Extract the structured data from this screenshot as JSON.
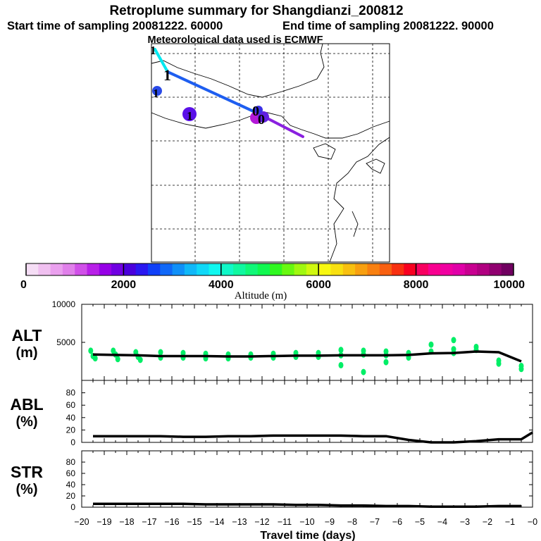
{
  "header": {
    "title": "Retroplume summary for Shangdianzi_200812",
    "start_time": "Start time of sampling 20081222. 60000",
    "end_time": "End time of sampling 20081222. 90000",
    "met_data": "Meteorological data used is ECMWF"
  },
  "colorbar": {
    "label": "Altitude (m)",
    "ticks": [
      "0",
      "2000",
      "4000",
      "6000",
      "8000",
      "10000"
    ],
    "colors": [
      "#f5ddf5",
      "#f0c0f0",
      "#eaa0ee",
      "#e080ea",
      "#d050e8",
      "#b820e8",
      "#9600e6",
      "#7000e2",
      "#4a00dc",
      "#2a18f0",
      "#1040f8",
      "#1068f8",
      "#1090f8",
      "#10b8f8",
      "#10d8f8",
      "#10f8f0",
      "#10f8c8",
      "#10f8a0",
      "#10f878",
      "#10f850",
      "#30f820",
      "#68f810",
      "#a0f810",
      "#d0f810",
      "#f8f810",
      "#f8e010",
      "#f8c010",
      "#f8a010",
      "#f88010",
      "#f86010",
      "#f83010",
      "#f80020",
      "#f80060",
      "#f80090",
      "#f000a0",
      "#e000a8",
      "#c80090",
      "#b00080",
      "#900070",
      "#700060"
    ]
  },
  "map_markers": {
    "label_char": "1",
    "cluster_char": "0"
  },
  "chart_data": [
    {
      "type": "line",
      "panel_id": "ALT",
      "ylabel": "ALT",
      "yunit": "(m)",
      "ylim": [
        0,
        10000
      ],
      "yticks": [
        5000,
        10000
      ],
      "ytick_labels": [
        "5000",
        "10000"
      ],
      "xlim": [
        -20,
        0
      ],
      "x": [
        -19.5,
        -18.5,
        -17.5,
        -16.5,
        -15.5,
        -14.5,
        -13.5,
        -12.5,
        -11.5,
        -10.5,
        -9.5,
        -8.5,
        -7.5,
        -6.5,
        -5.5,
        -4.5,
        -3.5,
        -2.5,
        -1.5,
        -0.5
      ],
      "line_values": [
        3400,
        3350,
        3300,
        3200,
        3200,
        3200,
        3150,
        3150,
        3200,
        3250,
        3250,
        3300,
        3300,
        3300,
        3350,
        3550,
        3600,
        3800,
        3700,
        2500
      ],
      "scatter": [
        {
          "x": -19.6,
          "y": 3900
        },
        {
          "x": -19.5,
          "y": 3200
        },
        {
          "x": -19.4,
          "y": 2900
        },
        {
          "x": -18.6,
          "y": 3900
        },
        {
          "x": -18.5,
          "y": 3400
        },
        {
          "x": -18.4,
          "y": 2800
        },
        {
          "x": -17.6,
          "y": 3700
        },
        {
          "x": -17.5,
          "y": 3100
        },
        {
          "x": -17.4,
          "y": 2700
        },
        {
          "x": -16.5,
          "y": 3700
        },
        {
          "x": -16.5,
          "y": 3000
        },
        {
          "x": -15.5,
          "y": 3600
        },
        {
          "x": -15.5,
          "y": 3000
        },
        {
          "x": -14.5,
          "y": 3500
        },
        {
          "x": -14.5,
          "y": 2900
        },
        {
          "x": -13.5,
          "y": 3400
        },
        {
          "x": -13.5,
          "y": 2900
        },
        {
          "x": -12.5,
          "y": 3400
        },
        {
          "x": -12.5,
          "y": 3000
        },
        {
          "x": -11.5,
          "y": 3500
        },
        {
          "x": -11.5,
          "y": 3000
        },
        {
          "x": -10.5,
          "y": 3600
        },
        {
          "x": -10.5,
          "y": 3100
        },
        {
          "x": -9.5,
          "y": 3600
        },
        {
          "x": -9.5,
          "y": 3100
        },
        {
          "x": -8.5,
          "y": 4000
        },
        {
          "x": -8.5,
          "y": 3300
        },
        {
          "x": -8.5,
          "y": 2000
        },
        {
          "x": -7.5,
          "y": 3900
        },
        {
          "x": -7.5,
          "y": 3400
        },
        {
          "x": -7.5,
          "y": 1100
        },
        {
          "x": -6.5,
          "y": 3800
        },
        {
          "x": -6.5,
          "y": 3300
        },
        {
          "x": -6.5,
          "y": 2400
        },
        {
          "x": -5.5,
          "y": 3600
        },
        {
          "x": -5.5,
          "y": 3000
        },
        {
          "x": -4.5,
          "y": 4700
        },
        {
          "x": -4.5,
          "y": 3800
        },
        {
          "x": -3.5,
          "y": 5300
        },
        {
          "x": -3.5,
          "y": 4100
        },
        {
          "x": -3.5,
          "y": 3600
        },
        {
          "x": -2.5,
          "y": 4400
        },
        {
          "x": -2.5,
          "y": 4000
        },
        {
          "x": -1.5,
          "y": 2600
        },
        {
          "x": -1.5,
          "y": 2200
        },
        {
          "x": -0.5,
          "y": 1900
        },
        {
          "x": -0.5,
          "y": 1500
        }
      ]
    },
    {
      "type": "line",
      "panel_id": "ABL",
      "ylabel": "ABL",
      "yunit": "(%)",
      "ylim": [
        0,
        100
      ],
      "yticks": [
        0,
        20,
        40,
        60,
        80
      ],
      "ytick_labels": [
        "0",
        "20",
        "40",
        "60",
        "80"
      ],
      "xlim": [
        -20,
        0
      ],
      "x": [
        -19.5,
        -18.5,
        -17.5,
        -16.5,
        -15.5,
        -14.5,
        -13.5,
        -12.5,
        -11.5,
        -10.5,
        -9.5,
        -8.5,
        -7.5,
        -6.5,
        -5.5,
        -4.5,
        -3.5,
        -2.5,
        -1.5,
        -0.5,
        0
      ],
      "line_values": [
        10,
        10,
        10,
        10,
        9,
        9,
        10,
        10,
        11,
        11,
        11,
        11,
        10,
        10,
        4,
        0,
        0,
        2,
        5,
        5,
        16
      ]
    },
    {
      "type": "line",
      "panel_id": "STR",
      "ylabel": "STR",
      "yunit": "(%)",
      "ylim": [
        0,
        100
      ],
      "yticks": [
        0,
        20,
        40,
        60,
        80
      ],
      "ytick_labels": [
        "0",
        "20",
        "40",
        "60",
        "80"
      ],
      "xlim": [
        -20,
        0
      ],
      "x": [
        -19.5,
        -18.5,
        -17.5,
        -16.5,
        -15.5,
        -14.5,
        -13.5,
        -12.5,
        -11.5,
        -10.5,
        -9.5,
        -8.5,
        -7.5,
        -6.5,
        -5.5,
        -4.5,
        -3.5,
        -2.5,
        -1.5,
        -0.5
      ],
      "line_values": [
        6,
        6,
        6,
        6,
        6,
        5,
        5,
        5,
        5,
        4,
        4,
        3,
        3,
        2,
        2,
        1,
        1,
        1,
        2,
        2
      ]
    }
  ],
  "xaxis": {
    "label": "Travel time (days)",
    "ticks": [
      -20,
      -19,
      -18,
      -17,
      -16,
      -15,
      -14,
      -13,
      -12,
      -11,
      -10,
      -9,
      -8,
      -7,
      -6,
      -5,
      -4,
      -3,
      -2,
      -1,
      0
    ],
    "tick_labels": [
      "−20",
      "−19",
      "−18",
      "−17",
      "−16",
      "−15",
      "−14",
      "−13",
      "−12",
      "−11",
      "−10",
      "−9",
      "−8",
      "−7",
      "−6",
      "−5",
      "−4",
      "−3",
      "−2",
      "−1",
      "−0"
    ]
  },
  "colors": {
    "line": "#000000",
    "scatter": "#00ee66"
  }
}
